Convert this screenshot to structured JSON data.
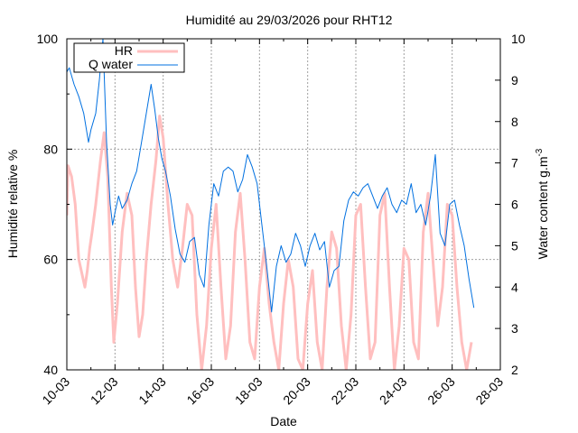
{
  "chart_data": {
    "type": "line",
    "title": "Humidité au 29/03/2026 pour RHT12",
    "xlabel": "Date",
    "ylabel": "Humidité relative %",
    "y2label_main": "Water content g.m",
    "y2label_sup": "-3",
    "xlim": [
      0,
      18
    ],
    "ylim": [
      40,
      100
    ],
    "y2lim": [
      2,
      10
    ],
    "x_ticks": [
      "10-03",
      "12-03",
      "14-03",
      "16-03",
      "18-03",
      "20-03",
      "22-03",
      "24-03",
      "26-03",
      "28-03"
    ],
    "y_ticks": [
      40,
      60,
      80,
      100
    ],
    "y2_ticks": [
      2,
      3,
      4,
      5,
      6,
      7,
      8,
      9,
      10
    ],
    "grid": true,
    "legend_position": "top-left",
    "colors": {
      "hr": "#ffbfbf",
      "water": "#0070e0",
      "grid": "#a0a0a0"
    },
    "series": [
      {
        "name": "HR",
        "axis": "left",
        "x": [
          0.0,
          0.05,
          0.2,
          0.35,
          0.5,
          0.65,
          0.75,
          0.85,
          0.95,
          1.05,
          1.2,
          1.4,
          1.55,
          1.7,
          1.85,
          1.95,
          2.1,
          2.3,
          2.5,
          2.7,
          2.85,
          3.0,
          3.15,
          3.3,
          3.5,
          3.7,
          3.85,
          4.0,
          4.2,
          4.4,
          4.6,
          4.8,
          5.0,
          5.2,
          5.4,
          5.6,
          5.8,
          6.0,
          6.2,
          6.4,
          6.6,
          6.8,
          7.0,
          7.2,
          7.4,
          7.6,
          7.8,
          8.0,
          8.2,
          8.4,
          8.6,
          8.8,
          9.0,
          9.2,
          9.4,
          9.6,
          9.8,
          10.0,
          10.2,
          10.4,
          10.6,
          10.8,
          11.0,
          11.2,
          11.4,
          11.6,
          11.8,
          12.0,
          12.2,
          12.4,
          12.6,
          12.8,
          13.0,
          13.2,
          13.4,
          13.6,
          13.8,
          14.0,
          14.2,
          14.4,
          14.6,
          14.8,
          15.0,
          15.2,
          15.4,
          15.6,
          15.8,
          16.0,
          16.2,
          16.4,
          16.6,
          16.8
        ],
        "y": [
          68,
          77,
          75,
          70,
          60,
          57,
          55,
          58,
          62,
          65,
          70,
          78,
          83,
          75,
          55,
          45,
          52,
          65,
          72,
          68,
          55,
          46,
          50,
          60,
          70,
          78,
          86,
          82,
          70,
          60,
          55,
          62,
          70,
          68,
          50,
          40,
          48,
          62,
          70,
          55,
          42,
          48,
          65,
          72,
          60,
          45,
          42,
          55,
          62,
          52,
          45,
          40,
          52,
          60,
          55,
          42,
          40,
          52,
          58,
          45,
          40,
          55,
          65,
          62,
          48,
          40,
          50,
          68,
          70,
          55,
          42,
          45,
          68,
          72,
          55,
          40,
          48,
          62,
          60,
          45,
          42,
          65,
          72,
          60,
          48,
          55,
          70,
          68,
          55,
          45,
          40,
          45
        ]
      },
      {
        "name": "Q water",
        "axis": "right",
        "x": [
          0.0,
          0.1,
          0.3,
          0.5,
          0.7,
          0.9,
          1.0,
          1.2,
          1.35,
          1.5,
          1.65,
          1.8,
          1.9,
          2.0,
          2.15,
          2.3,
          2.5,
          2.7,
          2.9,
          3.1,
          3.3,
          3.5,
          3.65,
          3.8,
          3.95,
          4.1,
          4.3,
          4.5,
          4.7,
          4.9,
          5.1,
          5.3,
          5.5,
          5.7,
          5.9,
          6.1,
          6.3,
          6.5,
          6.7,
          6.9,
          7.1,
          7.3,
          7.5,
          7.7,
          7.9,
          8.1,
          8.3,
          8.5,
          8.7,
          8.9,
          9.1,
          9.3,
          9.5,
          9.7,
          9.9,
          10.1,
          10.3,
          10.5,
          10.7,
          10.9,
          11.1,
          11.3,
          11.5,
          11.7,
          11.9,
          12.1,
          12.3,
          12.5,
          12.7,
          12.9,
          13.1,
          13.3,
          13.5,
          13.7,
          13.9,
          14.1,
          14.3,
          14.5,
          14.7,
          14.9,
          15.1,
          15.3,
          15.5,
          15.7,
          15.9,
          16.1,
          16.3,
          16.5,
          16.7,
          16.9
        ],
        "y": [
          9.2,
          9.3,
          8.9,
          8.6,
          8.2,
          7.5,
          7.8,
          8.2,
          9.0,
          10.0,
          7.5,
          6.0,
          5.5,
          5.8,
          6.2,
          5.9,
          6.1,
          6.5,
          6.8,
          7.5,
          8.2,
          8.9,
          8.3,
          7.6,
          7.1,
          6.8,
          6.2,
          5.4,
          4.8,
          4.6,
          5.1,
          5.2,
          4.3,
          4.0,
          5.5,
          6.5,
          6.2,
          6.8,
          6.9,
          6.8,
          6.3,
          6.6,
          7.2,
          6.9,
          6.5,
          5.5,
          4.5,
          3.4,
          4.5,
          5.0,
          4.6,
          4.8,
          5.3,
          5.0,
          4.5,
          5.0,
          5.3,
          4.9,
          5.1,
          4.0,
          4.4,
          4.5,
          5.6,
          6.1,
          6.3,
          6.2,
          6.4,
          6.5,
          6.2,
          5.9,
          6.2,
          6.4,
          6.0,
          5.8,
          6.1,
          6.0,
          6.5,
          5.8,
          6.0,
          5.5,
          6.2,
          7.2,
          5.3,
          5.0,
          6.0,
          6.1,
          5.5,
          5.0,
          4.2,
          3.5
        ]
      }
    ]
  }
}
